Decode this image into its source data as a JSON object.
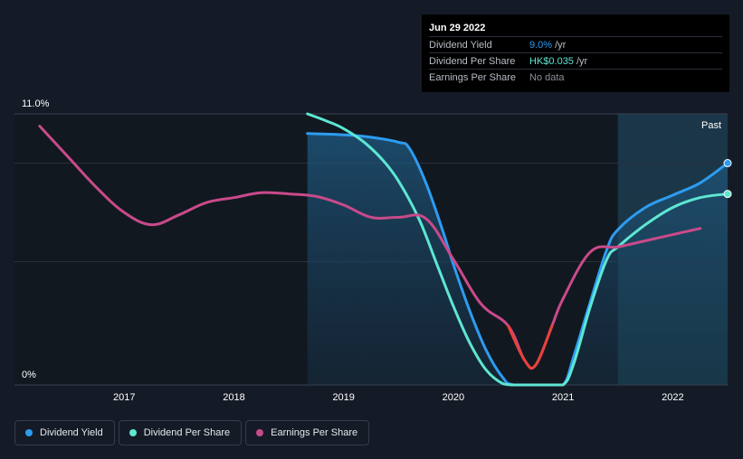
{
  "tooltip": {
    "date": "Jun 29 2022",
    "rows": [
      {
        "label": "Dividend Yield",
        "value": "9.0%",
        "unit": "/yr",
        "color": "#2d9cf0"
      },
      {
        "label": "Dividend Per Share",
        "value": "HK$0.035",
        "unit": "/yr",
        "color": "#5ee6d2"
      },
      {
        "label": "Earnings Per Share",
        "value": "No data",
        "unit": "",
        "color": "#8a8f98"
      }
    ]
  },
  "legend": [
    {
      "label": "Dividend Yield",
      "color": "#2d9cf0"
    },
    {
      "label": "Dividend Per Share",
      "color": "#5ee6d2"
    },
    {
      "label": "Earnings Per Share",
      "color": "#c94a8a"
    }
  ],
  "chart_data": {
    "type": "line",
    "title": "",
    "xlabel": "",
    "ylabel": "",
    "ylim": [
      0,
      11.0
    ],
    "xlim": [
      2016.0,
      2022.5
    ],
    "y_tick_labels": [
      "11.0%",
      "0%"
    ],
    "x_ticks": [
      2017,
      2018,
      2019,
      2020,
      2021,
      2022
    ],
    "past_label": "Past",
    "forecast_start": 2021.5,
    "series": [
      {
        "name": "Dividend Yield",
        "color": "#2d9cf0",
        "area": true,
        "points": [
          [
            2018.67,
            10.2
          ],
          [
            2019.0,
            10.15
          ],
          [
            2019.25,
            10.05
          ],
          [
            2019.5,
            9.85
          ],
          [
            2019.6,
            9.6
          ],
          [
            2019.75,
            8.2
          ],
          [
            2019.9,
            6.3
          ],
          [
            2020.0,
            4.9
          ],
          [
            2020.15,
            3.0
          ],
          [
            2020.3,
            1.4
          ],
          [
            2020.45,
            0.3
          ],
          [
            2020.55,
            0.0
          ],
          [
            2020.83,
            0.0
          ],
          [
            2021.0,
            0.0
          ],
          [
            2021.1,
            1.2
          ],
          [
            2021.25,
            3.4
          ],
          [
            2021.4,
            5.5
          ],
          [
            2021.5,
            6.3
          ],
          [
            2021.75,
            7.2
          ],
          [
            2022.0,
            7.7
          ],
          [
            2022.25,
            8.2
          ],
          [
            2022.5,
            9.0
          ]
        ]
      },
      {
        "name": "Dividend Per Share",
        "color": "#5ee6d2",
        "area": false,
        "points": [
          [
            2018.67,
            11.0
          ],
          [
            2018.85,
            10.7
          ],
          [
            2019.0,
            10.4
          ],
          [
            2019.2,
            9.8
          ],
          [
            2019.4,
            8.9
          ],
          [
            2019.55,
            7.9
          ],
          [
            2019.7,
            6.6
          ],
          [
            2019.85,
            4.9
          ],
          [
            2020.0,
            3.2
          ],
          [
            2020.15,
            1.7
          ],
          [
            2020.3,
            0.6
          ],
          [
            2020.45,
            0.05
          ],
          [
            2020.55,
            0.0
          ],
          [
            2020.83,
            0.0
          ],
          [
            2021.0,
            0.0
          ],
          [
            2021.1,
            0.9
          ],
          [
            2021.25,
            3.2
          ],
          [
            2021.4,
            5.1
          ],
          [
            2021.5,
            5.6
          ],
          [
            2021.75,
            6.5
          ],
          [
            2022.0,
            7.2
          ],
          [
            2022.25,
            7.6
          ],
          [
            2022.5,
            7.75
          ]
        ]
      },
      {
        "name": "Earnings Per Share",
        "color": "#c94a8a",
        "negative_color": "#e8413a",
        "area": false,
        "points": [
          [
            2016.23,
            10.5
          ],
          [
            2016.5,
            9.2
          ],
          [
            2016.75,
            8.0
          ],
          [
            2017.0,
            7.0
          ],
          [
            2017.25,
            6.5
          ],
          [
            2017.5,
            6.9
          ],
          [
            2017.75,
            7.4
          ],
          [
            2018.0,
            7.6
          ],
          [
            2018.25,
            7.8
          ],
          [
            2018.5,
            7.75
          ],
          [
            2018.75,
            7.65
          ],
          [
            2019.0,
            7.3
          ],
          [
            2019.25,
            6.8
          ],
          [
            2019.5,
            6.8
          ],
          [
            2019.75,
            6.75
          ],
          [
            2020.0,
            5.1
          ],
          [
            2020.25,
            3.3
          ],
          [
            2020.5,
            2.4
          ],
          [
            2020.65,
            1.0
          ],
          [
            2020.75,
            0.8
          ],
          [
            2020.9,
            2.4
          ],
          [
            2021.0,
            3.5
          ],
          [
            2021.25,
            5.4
          ],
          [
            2021.5,
            5.6
          ],
          [
            2021.75,
            5.85
          ],
          [
            2022.0,
            6.1
          ],
          [
            2022.25,
            6.35
          ]
        ]
      }
    ]
  }
}
